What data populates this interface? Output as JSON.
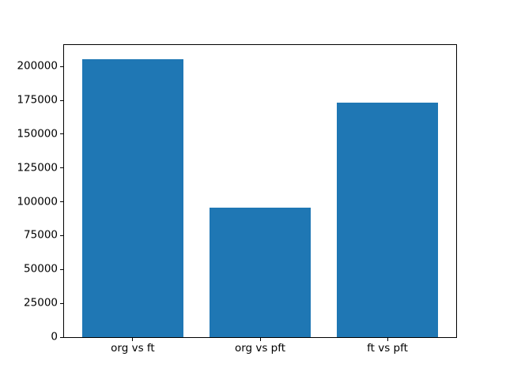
{
  "chart_data": {
    "type": "bar",
    "title": "",
    "xlabel": "",
    "ylabel": "",
    "categories": [
      "org vs ft",
      "org vs pft",
      "ft vs pft"
    ],
    "values": [
      205600,
      95600,
      173600
    ],
    "yticks": [
      0,
      25000,
      50000,
      75000,
      100000,
      125000,
      150000,
      175000,
      200000
    ],
    "ylim": [
      0,
      215900
    ],
    "bar_color": "#1f77b4",
    "axis_color": "#000000",
    "background_color": "#ffffff",
    "bar_width_fraction": 0.8,
    "grid": false,
    "legend": false
  }
}
